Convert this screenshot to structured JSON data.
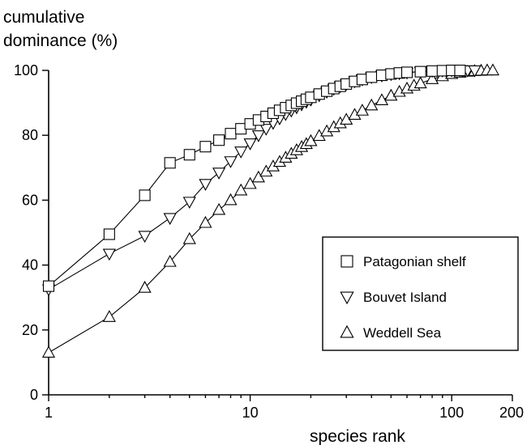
{
  "chart_data": {
    "type": "line",
    "title": "",
    "xlabel": "species rank",
    "ylabel_lines": [
      "cumulative",
      "dominance (%)"
    ],
    "x_scale": "log",
    "xlim": [
      1,
      200
    ],
    "ylim": [
      0,
      100
    ],
    "x_ticks": [
      1,
      10,
      100,
      200
    ],
    "x_tick_labels": [
      "1",
      "10",
      "100",
      "200"
    ],
    "y_ticks": [
      0,
      20,
      40,
      60,
      80,
      100
    ],
    "y_tick_labels": [
      "0",
      "20",
      "40",
      "60",
      "80",
      "100"
    ],
    "grid": false,
    "legend_position": "lower-right",
    "series": [
      {
        "name": "Patagonian shelf",
        "marker": "square",
        "x": [
          1,
          2,
          3,
          4,
          5,
          6,
          7,
          8,
          9,
          10,
          11,
          12,
          13,
          14,
          15,
          16,
          17,
          18,
          19,
          20,
          22,
          24,
          26,
          28,
          30,
          33,
          36,
          40,
          45,
          50,
          55,
          60,
          70,
          80,
          90,
          100,
          110
        ],
        "values": [
          33.5,
          49.5,
          61.5,
          71.5,
          74,
          76.5,
          78.5,
          80.5,
          82,
          83.5,
          84.7,
          85.8,
          86.8,
          87.7,
          88.5,
          89.2,
          89.9,
          90.5,
          91.1,
          91.7,
          92.7,
          93.6,
          94.4,
          95.1,
          95.8,
          96.6,
          97.2,
          97.9,
          98.5,
          98.9,
          99.2,
          99.4,
          99.6,
          99.8,
          99.9,
          100,
          100
        ]
      },
      {
        "name": "Bouvet Island",
        "marker": "triangle-down",
        "x": [
          1,
          2,
          3,
          4,
          5,
          6,
          7,
          8,
          9,
          10,
          11,
          12,
          13,
          14,
          15,
          16,
          17,
          18,
          19,
          20,
          22,
          24,
          26,
          28,
          30,
          33,
          36,
          40,
          45,
          50,
          55,
          60,
          70,
          80,
          90,
          100,
          110,
          120,
          130
        ],
        "values": [
          32.5,
          43.5,
          49,
          54.5,
          59.5,
          65,
          68.5,
          72,
          75,
          77.5,
          80,
          82,
          83.8,
          85.2,
          86.5,
          87.6,
          88.6,
          89.5,
          90.3,
          91,
          92.3,
          93.4,
          94.3,
          95.1,
          95.8,
          96.6,
          97.2,
          97.9,
          98.4,
          98.8,
          99.1,
          99.3,
          99.6,
          99.8,
          99.9,
          100,
          100,
          100,
          100
        ]
      },
      {
        "name": "Weddell Sea",
        "marker": "triangle-up",
        "x": [
          1,
          2,
          3,
          4,
          5,
          6,
          7,
          8,
          9,
          10,
          11,
          12,
          13,
          14,
          15,
          16,
          17,
          18,
          19,
          20,
          22,
          24,
          26,
          28,
          30,
          33,
          36,
          40,
          45,
          50,
          55,
          60,
          65,
          70,
          80,
          90,
          100,
          110,
          120,
          130,
          140,
          150,
          160
        ],
        "values": [
          13,
          24,
          33,
          41,
          48,
          53,
          57,
          60,
          63,
          65,
          67,
          68.8,
          70.4,
          71.8,
          73.1,
          74.3,
          75.4,
          76.4,
          77.3,
          78.2,
          79.8,
          81.2,
          82.5,
          83.7,
          84.8,
          86.3,
          87.6,
          89.2,
          90.8,
          92.2,
          93.4,
          94.4,
          95.3,
          96,
          97.3,
          98.2,
          98.9,
          99.3,
          99.6,
          99.8,
          99.9,
          100,
          100
        ]
      }
    ]
  }
}
